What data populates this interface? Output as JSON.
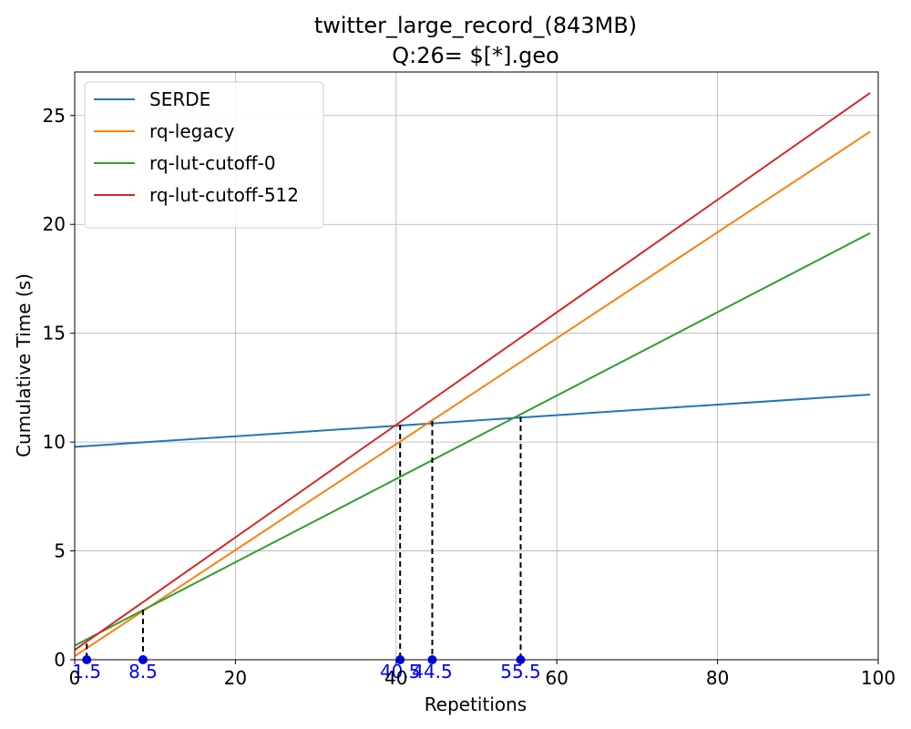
{
  "chart_data": {
    "type": "line",
    "title": "twitter_large_record_(843MB)",
    "subtitle": "Q:26= $[*].geo",
    "xlabel": "Repetitions",
    "ylabel": "Cumulative Time (s)",
    "xlim": [
      0,
      100
    ],
    "ylim": [
      0,
      27
    ],
    "xticks": [
      0,
      20,
      40,
      60,
      80,
      100
    ],
    "xtick_labels": [
      "0",
      "20",
      "40",
      "60",
      "80",
      "100"
    ],
    "yticks": [
      0,
      5,
      10,
      15,
      20,
      25
    ],
    "ytick_labels": [
      "0",
      "5",
      "10",
      "15",
      "20",
      "25"
    ],
    "grid": true,
    "legend_position": "top-left",
    "series": [
      {
        "name": "SERDE",
        "color": "#1f77b4",
        "x": [
          0,
          99
        ],
        "y": [
          9.78,
          12.18
        ]
      },
      {
        "name": "rq-legacy",
        "color": "#ff7f0e",
        "x": [
          0,
          99
        ],
        "y": [
          0.17,
          24.26
        ]
      },
      {
        "name": "rq-lut-cutoff-0",
        "color": "#2ca02c",
        "x": [
          0,
          99
        ],
        "y": [
          0.65,
          19.6
        ]
      },
      {
        "name": "rq-lut-cutoff-512",
        "color": "#d62728",
        "x": [
          0,
          99
        ],
        "y": [
          0.45,
          26.04
        ]
      }
    ],
    "crossovers": [
      {
        "x": 1.5,
        "y": 0.74,
        "label": "1.5"
      },
      {
        "x": 8.5,
        "y": 2.3,
        "label": "8.5"
      },
      {
        "x": 40.5,
        "y": 10.8,
        "label": "40.5"
      },
      {
        "x": 44.5,
        "y": 10.97,
        "label": "44.5"
      },
      {
        "x": 55.5,
        "y": 11.17,
        "label": "55.5"
      }
    ],
    "crossover_color": "#0000ff"
  }
}
